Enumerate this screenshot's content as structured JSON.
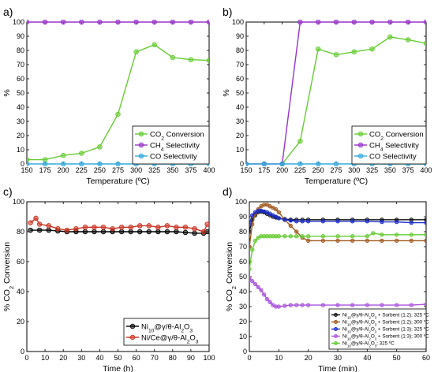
{
  "chart_data": [
    {
      "panel": "a)",
      "type": "line",
      "xlabel": "Temperature (ºC)",
      "ylabel": "%",
      "xlim": [
        150,
        400
      ],
      "ylim": [
        0,
        100
      ],
      "xticks": [
        150,
        175,
        200,
        225,
        250,
        275,
        300,
        325,
        350,
        375,
        400
      ],
      "yticks": [
        0,
        10,
        20,
        30,
        40,
        50,
        60,
        70,
        80,
        90,
        100
      ],
      "grid": false,
      "legend_position": "lower-right",
      "series": [
        {
          "name": "CO₂ Conversion",
          "color": "#66cc33",
          "x": [
            150,
            175,
            200,
            225,
            250,
            275,
            300,
            325,
            350,
            375,
            400
          ],
          "y": [
            3,
            3,
            6,
            7.5,
            12,
            35,
            79,
            84,
            75,
            73.5,
            73
          ]
        },
        {
          "name": "CH₄ Selectivity",
          "color": "#9933cc",
          "x": [
            150,
            175,
            200,
            225,
            250,
            275,
            300,
            325,
            350,
            375,
            400
          ],
          "y": [
            100,
            100,
            100,
            100,
            100,
            100,
            100,
            100,
            100,
            100,
            100
          ]
        },
        {
          "name": "CO Selectivity",
          "color": "#33aadd",
          "x": [
            150,
            175,
            200,
            225,
            250,
            275,
            300,
            325,
            350,
            375,
            400
          ],
          "y": [
            0,
            0,
            0,
            0,
            0,
            0,
            0,
            0,
            0,
            0,
            0
          ]
        }
      ]
    },
    {
      "panel": "b)",
      "type": "line",
      "xlabel": "Temperature (ºC)",
      "ylabel": "%",
      "xlim": [
        150,
        400
      ],
      "ylim": [
        0,
        100
      ],
      "xticks": [
        150,
        175,
        200,
        225,
        250,
        275,
        300,
        325,
        350,
        375,
        400
      ],
      "yticks": [
        0,
        10,
        20,
        30,
        40,
        50,
        60,
        70,
        80,
        90,
        100
      ],
      "grid": false,
      "legend_position": "lower-right",
      "series": [
        {
          "name": "CO₂ Conversion",
          "color": "#66cc33",
          "x": [
            200,
            225,
            250,
            275,
            300,
            325,
            350,
            375,
            400
          ],
          "y": [
            0,
            16,
            81,
            77,
            79,
            81,
            89.5,
            87.5,
            85
          ]
        },
        {
          "name": "CH₄ Selectivity",
          "color": "#9933cc",
          "x": [
            150,
            175,
            200,
            225,
            250,
            275,
            300,
            325,
            350,
            375,
            400
          ],
          "y": [
            0,
            0,
            0,
            100,
            100,
            100,
            100,
            100,
            100,
            100,
            100
          ]
        },
        {
          "name": "CO Selectivity",
          "color": "#33aadd",
          "x": [
            150,
            175,
            200,
            225,
            250,
            275,
            300,
            325,
            350,
            375,
            400
          ],
          "y": [
            0,
            0,
            0,
            0,
            0,
            0,
            0,
            0,
            0,
            0,
            0
          ]
        }
      ]
    },
    {
      "panel": "c)",
      "type": "line",
      "xlabel": "Time (h)",
      "ylabel": "% CO₂ Conversion",
      "xlim": [
        0,
        100
      ],
      "ylim": [
        0,
        100
      ],
      "xticks": [
        0,
        10,
        20,
        30,
        40,
        50,
        60,
        70,
        80,
        90,
        100
      ],
      "yticks": [
        0,
        20,
        40,
        60,
        80,
        100
      ],
      "grid": false,
      "legend_position": "lower-right",
      "series": [
        {
          "name": "Ni₁₀@γ/θ-Al₂O₃",
          "color": "#000000",
          "x": [
            2,
            7,
            12,
            17,
            22,
            27,
            32,
            37,
            42,
            47,
            52,
            57,
            62,
            67,
            72,
            77,
            82,
            87,
            92,
            97,
            99
          ],
          "y": [
            81,
            81,
            81,
            80.5,
            80,
            80,
            80,
            80,
            80,
            80,
            80,
            80,
            80,
            80,
            80,
            80,
            80,
            79.5,
            79,
            79,
            80
          ]
        },
        {
          "name": "Ni/Ce@γ/θ-Al₂O₃",
          "color": "#cc3322",
          "x": [
            2,
            5,
            7,
            12,
            17,
            22,
            27,
            32,
            37,
            42,
            47,
            52,
            57,
            62,
            67,
            72,
            77,
            82,
            87,
            92,
            97,
            99
          ],
          "y": [
            86,
            89,
            85,
            84,
            82,
            81,
            82,
            83,
            83,
            83,
            82,
            83,
            83,
            84,
            84,
            83,
            84,
            83,
            83,
            82,
            80,
            85
          ]
        }
      ]
    },
    {
      "panel": "d)",
      "type": "line",
      "xlabel": "Time (min)",
      "ylabel": "% CO₂ Conversion",
      "xlim": [
        0,
        60
      ],
      "ylim": [
        0,
        100
      ],
      "xticks": [
        0,
        10,
        20,
        30,
        40,
        50,
        60
      ],
      "yticks": [
        0,
        10,
        20,
        30,
        40,
        50,
        60,
        70,
        80,
        90,
        100
      ],
      "grid": false,
      "legend_position": "lower-right",
      "series": [
        {
          "name": "Ni₁₀@γ/θ-Al₂O₃ + Sorbent (1:2); 325 ºC",
          "color": "#111111",
          "x": [
            0,
            1,
            2,
            3,
            4,
            5,
            6,
            7,
            8,
            9,
            10,
            12,
            14,
            16,
            18,
            20,
            25,
            30,
            35,
            40,
            45,
            50,
            55,
            60
          ],
          "y": [
            80,
            88,
            91,
            93,
            93.5,
            93,
            92,
            91,
            90,
            89.5,
            89,
            88.5,
            88,
            88,
            88,
            88,
            88,
            88,
            88,
            88,
            88,
            88,
            88,
            88
          ]
        },
        {
          "name": "Ni₁₀@γ/θ-Al₂O₃ + Sorbent (1:2); 300 ºC",
          "color": "#a05a20",
          "x": [
            0,
            1,
            2,
            3,
            4,
            5,
            6,
            7,
            8,
            9,
            10,
            12,
            14,
            16,
            18,
            20,
            25,
            30,
            35,
            40,
            45,
            50,
            55,
            60
          ],
          "y": [
            70,
            85,
            92,
            95,
            97,
            98,
            98,
            97,
            96,
            95,
            93,
            88,
            84,
            80,
            76,
            74,
            74,
            74,
            74,
            74,
            74,
            74,
            74,
            74
          ]
        },
        {
          "name": "Ni₁₀@γ/θ-Al₂O₃ + Sorbent (1:3); 325 ºC",
          "color": "#1a2bcc",
          "x": [
            0,
            1,
            2,
            3,
            4,
            5,
            6,
            7,
            8,
            9,
            10,
            12,
            14,
            16,
            18,
            20,
            25,
            30,
            35,
            40,
            45,
            50,
            55,
            60
          ],
          "y": [
            85,
            91,
            93,
            94,
            94,
            93.5,
            93,
            92,
            91,
            90,
            89,
            88,
            87.5,
            87,
            87,
            87,
            87,
            87,
            87,
            87,
            86.5,
            86.5,
            86,
            86
          ]
        },
        {
          "name": "Ni₁₀@γ/θ-Al₂O₃ + Sorbent (1:3); 300 ºC",
          "color": "#aa55dd",
          "x": [
            0,
            1,
            2,
            3,
            4,
            5,
            6,
            7,
            8,
            9,
            10,
            12,
            14,
            16,
            18,
            20,
            25,
            30,
            35,
            40,
            45,
            50,
            55,
            60
          ],
          "y": [
            49,
            47,
            45,
            43,
            41,
            38,
            35,
            33,
            31,
            30,
            30,
            30.5,
            31,
            31,
            31,
            31,
            31,
            31,
            31,
            31,
            31,
            31,
            31,
            31.5
          ]
        },
        {
          "name": "Ni₁₀@γ/θ-Al₂O₃; 325 ºC",
          "color": "#66cc33",
          "x": [
            0,
            1,
            2,
            3,
            4,
            5,
            6,
            7,
            8,
            9,
            10,
            12,
            14,
            16,
            18,
            20,
            25,
            30,
            35,
            40,
            42,
            45,
            50,
            55,
            60
          ],
          "y": [
            55,
            68,
            74,
            76,
            77,
            77,
            77,
            77,
            77,
            77,
            77,
            77,
            77,
            77,
            77,
            77,
            77,
            77,
            77,
            77,
            79,
            78,
            78,
            78,
            78
          ]
        }
      ]
    }
  ]
}
